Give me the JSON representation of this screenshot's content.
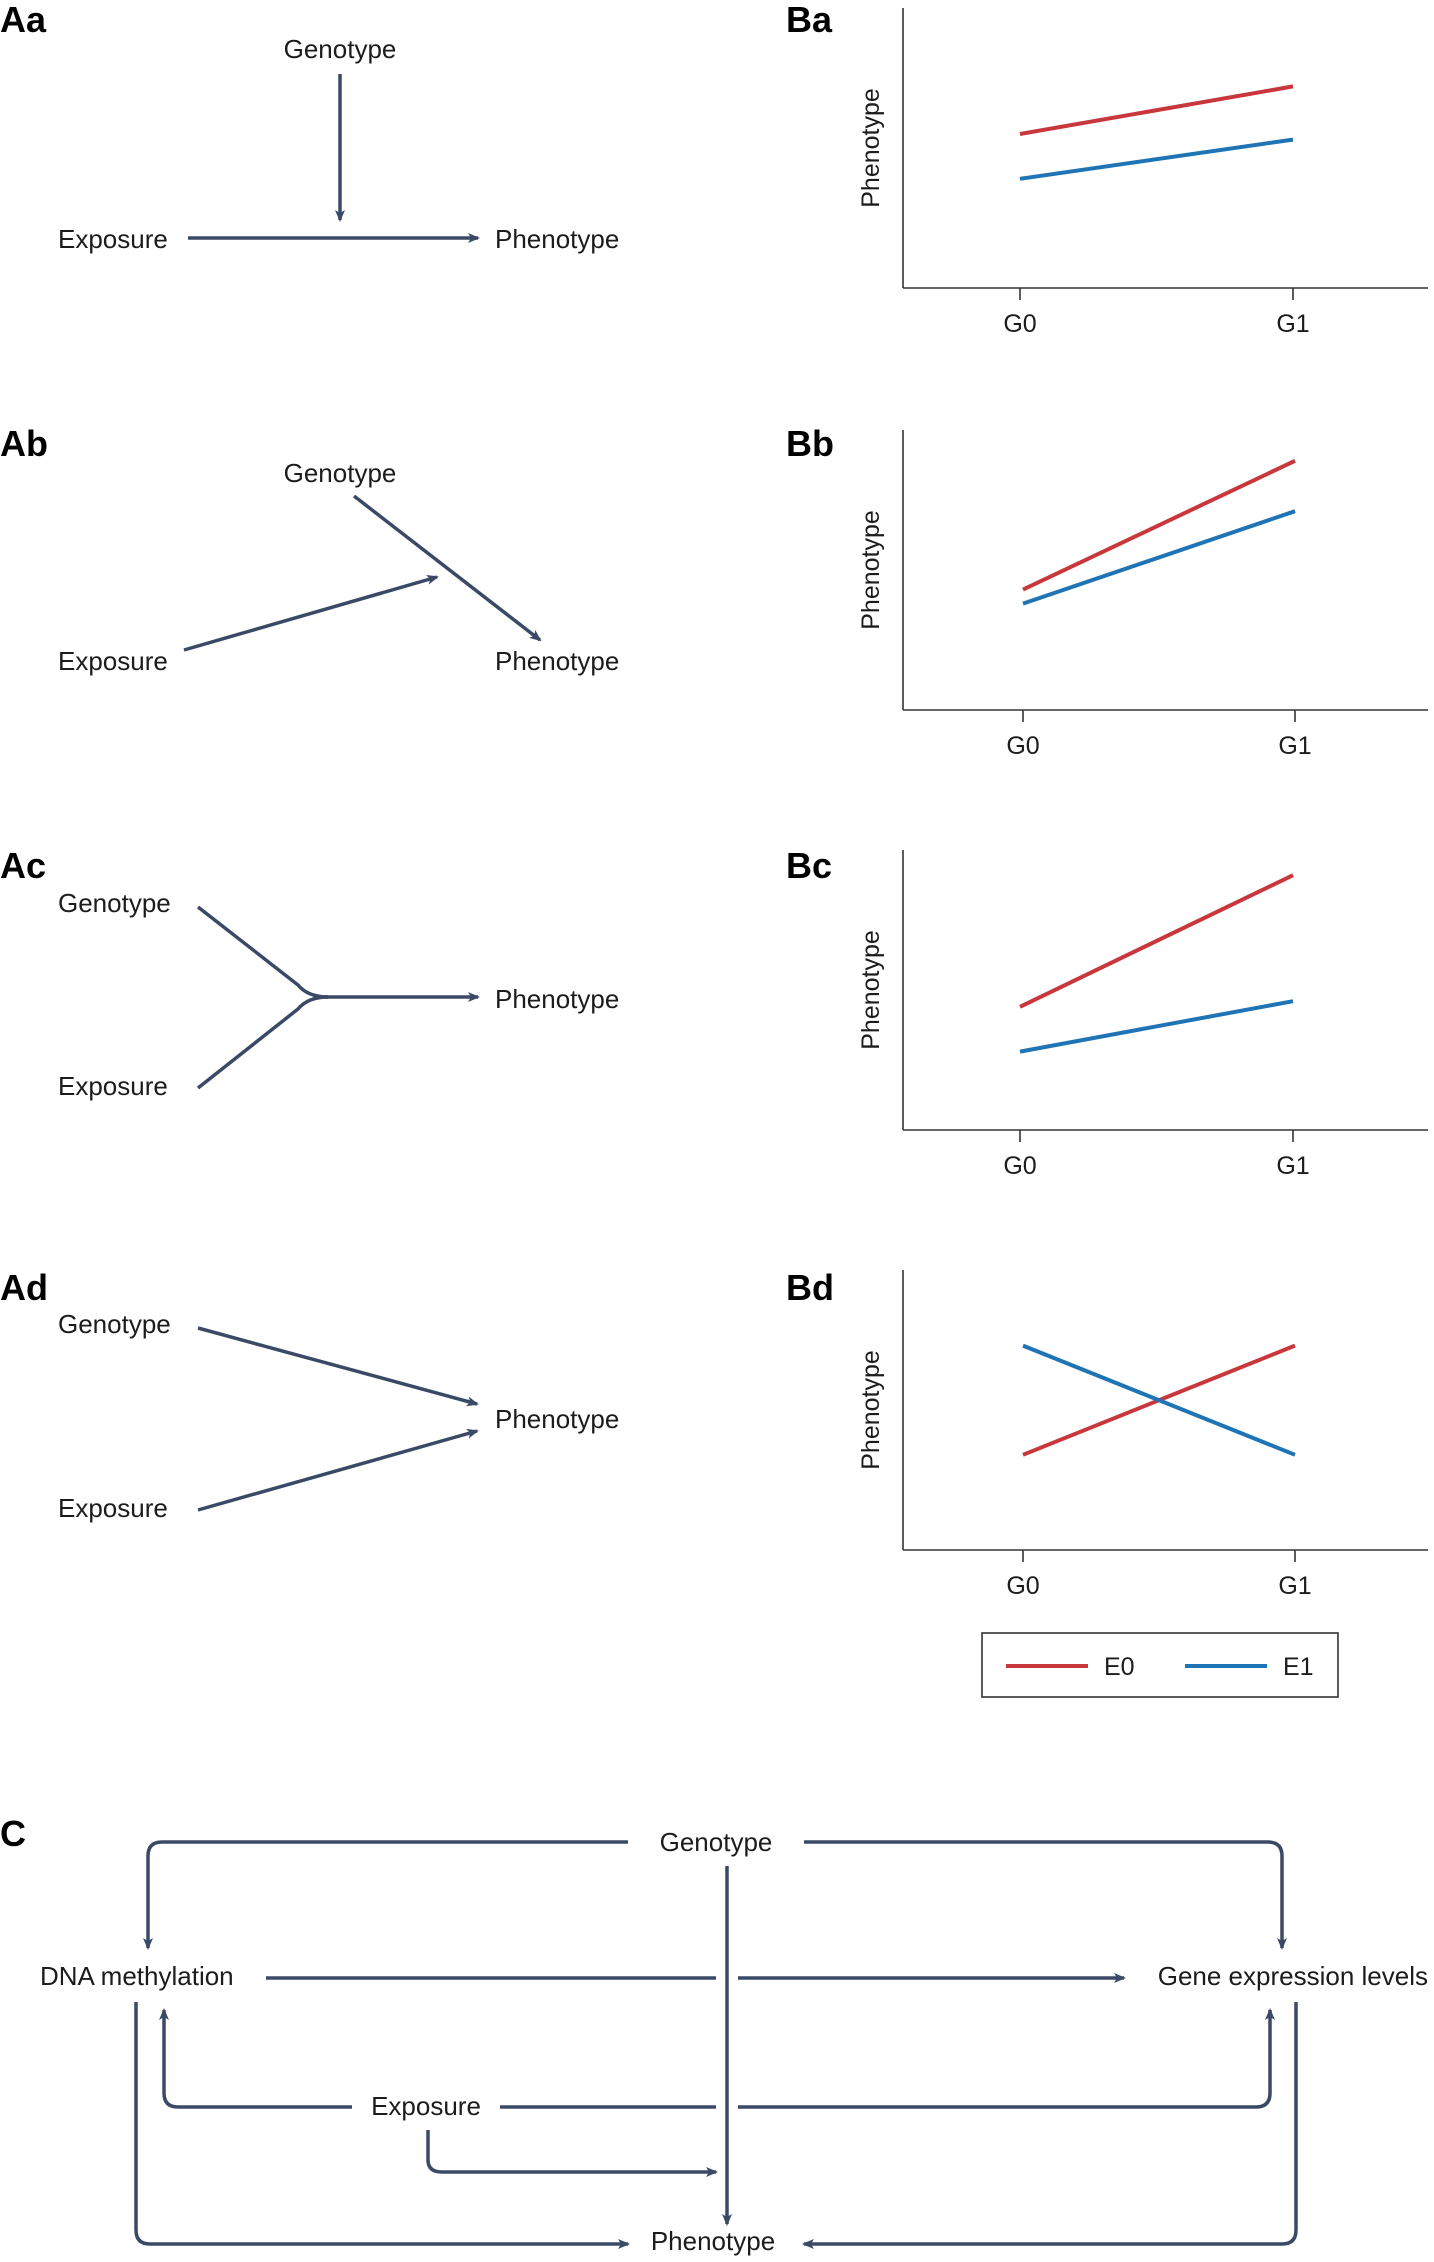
{
  "colors": {
    "arrow": "#3a4a66",
    "E0": "#c8373c",
    "E1": "#1f74b5",
    "axis": "#333333",
    "text": "#1c1c1c"
  },
  "panels_a": {
    "Aa": {
      "label": "Aa",
      "genotype": "Genotype",
      "exposure": "Exposure",
      "phenotype": "Phenotype"
    },
    "Ab": {
      "label": "Ab",
      "genotype": "Genotype",
      "exposure": "Exposure",
      "phenotype": "Phenotype"
    },
    "Ac": {
      "label": "Ac",
      "genotype": "Genotype",
      "exposure": "Exposure",
      "phenotype": "Phenotype"
    },
    "Ad": {
      "label": "Ad",
      "genotype": "Genotype",
      "exposure": "Exposure",
      "phenotype": "Phenotype"
    }
  },
  "legend": {
    "e0": "E0",
    "e1": "E1"
  },
  "chart_data": [
    {
      "type": "line",
      "panel": "Ba",
      "ylabel": "Phenotype",
      "categories": [
        "G0",
        "G1"
      ],
      "ylim": [
        0,
        10
      ],
      "series": [
        {
          "name": "E0",
          "values": [
            5.5,
            7.2
          ]
        },
        {
          "name": "E1",
          "values": [
            3.9,
            5.3
          ]
        }
      ]
    },
    {
      "type": "line",
      "panel": "Bb",
      "ylabel": "Phenotype",
      "categories": [
        "G0",
        "G1"
      ],
      "ylim": [
        0,
        10
      ],
      "series": [
        {
          "name": "E0",
          "values": [
            4.3,
            8.9
          ]
        },
        {
          "name": "E1",
          "values": [
            3.8,
            7.1
          ]
        }
      ]
    },
    {
      "type": "line",
      "panel": "Bc",
      "ylabel": "Phenotype",
      "categories": [
        "G0",
        "G1"
      ],
      "ylim": [
        0,
        10
      ],
      "series": [
        {
          "name": "E0",
          "values": [
            4.4,
            9.1
          ]
        },
        {
          "name": "E1",
          "values": [
            2.8,
            4.6
          ]
        }
      ]
    },
    {
      "type": "line",
      "panel": "Bd",
      "ylabel": "Phenotype",
      "categories": [
        "G0",
        "G1"
      ],
      "ylim": [
        0,
        10
      ],
      "series": [
        {
          "name": "E0",
          "values": [
            3.4,
            7.3
          ]
        },
        {
          "name": "E1",
          "values": [
            7.3,
            3.4
          ]
        }
      ]
    }
  ],
  "panel_c": {
    "label": "C",
    "genotype": "Genotype",
    "dna_methylation": "DNA methylation",
    "gene_expression": "Gene expression levels",
    "exposure": "Exposure",
    "phenotype": "Phenotype"
  }
}
